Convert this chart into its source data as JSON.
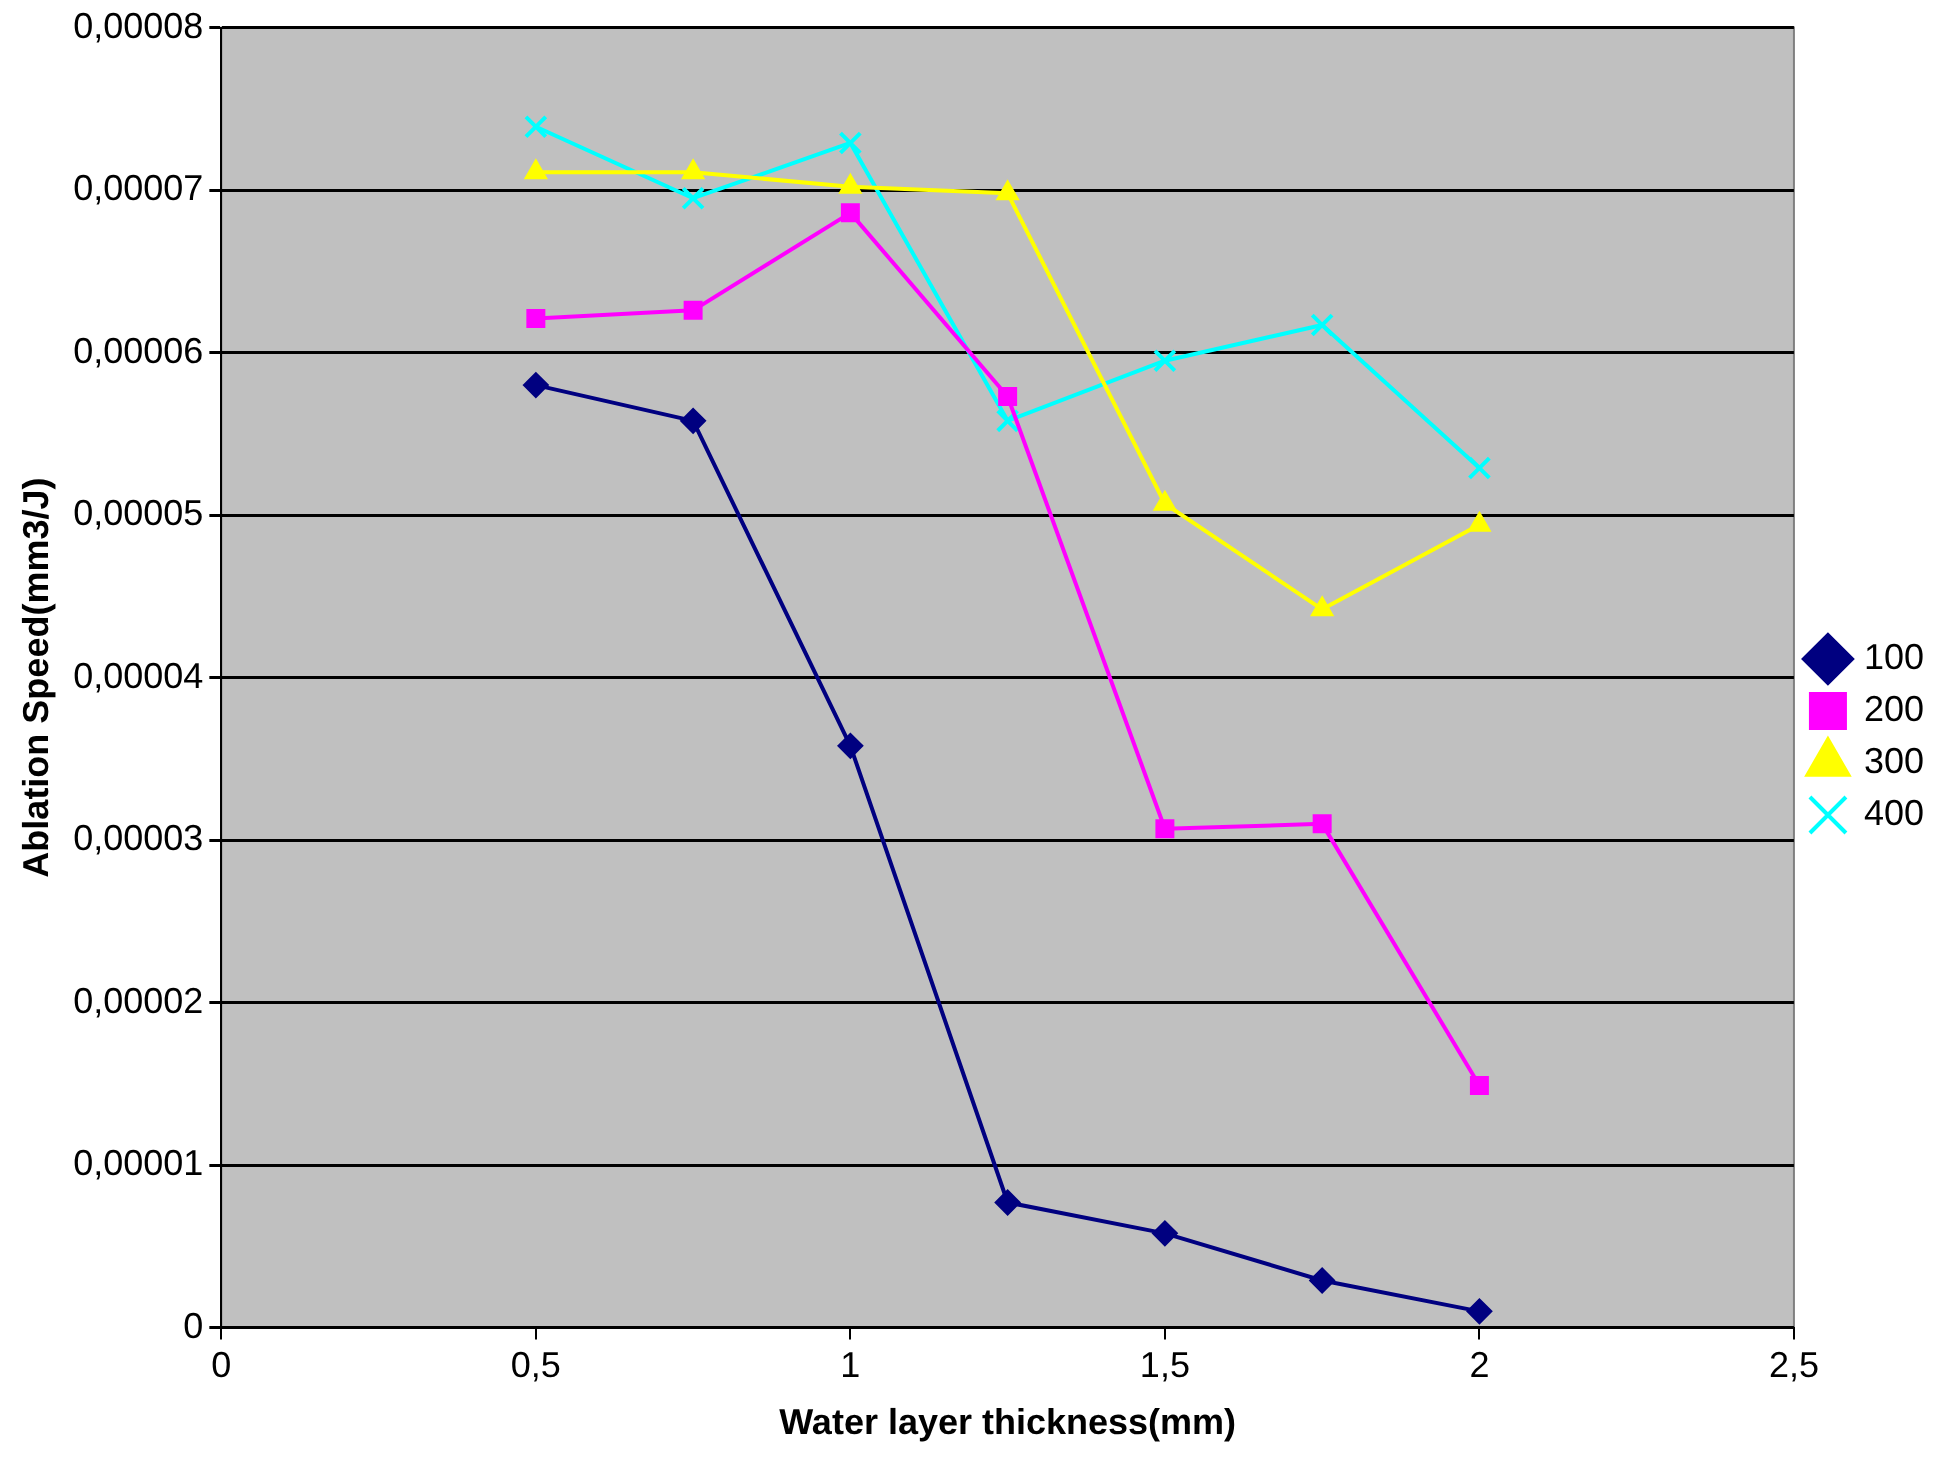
{
  "chart_data": {
    "type": "line",
    "xlabel": "Water layer thickness(mm)",
    "ylabel": "Ablation Speed(mm3/J)",
    "x": [
      0.5,
      0.75,
      1,
      1.25,
      1.5,
      1.75,
      2
    ],
    "series": [
      {
        "name": "100",
        "color": "#000080",
        "marker": "diamond",
        "values": [
          5.8e-05,
          5.58e-05,
          3.58e-05,
          7.7e-06,
          5.8e-06,
          2.9e-06,
          1e-06
        ]
      },
      {
        "name": "200",
        "color": "#ff00ff",
        "marker": "square",
        "values": [
          6.21e-05,
          6.26e-05,
          6.86e-05,
          5.73e-05,
          3.07e-05,
          3.1e-05,
          1.49e-05
        ]
      },
      {
        "name": "300",
        "color": "#ffff00",
        "marker": "triangle",
        "values": [
          7.11e-05,
          7.11e-05,
          7.02e-05,
          6.98e-05,
          5.07e-05,
          4.42e-05,
          4.94e-05
        ]
      },
      {
        "name": "400",
        "color": "#00ffff",
        "marker": "cross",
        "values": [
          7.39e-05,
          6.95e-05,
          7.29e-05,
          5.58e-05,
          5.95e-05,
          6.17e-05,
          5.29e-05
        ]
      }
    ],
    "xlim": [
      0,
      2.5
    ],
    "xticks": [
      0,
      {
        "value": 0.5,
        "label": "0,5"
      },
      1,
      {
        "value": 1.5,
        "label": "1,5"
      },
      2,
      {
        "value": 2.5,
        "label": "2,5"
      }
    ],
    "ylim": [
      0,
      8e-05
    ],
    "yticks": [
      0,
      {
        "value": 1e-05,
        "label": "0,00001"
      },
      {
        "value": 2e-05,
        "label": "0,00002"
      },
      {
        "value": 3e-05,
        "label": "0,00003"
      },
      {
        "value": 4e-05,
        "label": "0,00004"
      },
      {
        "value": 5e-05,
        "label": "0,00005"
      },
      {
        "value": 6e-05,
        "label": "0,00006"
      },
      {
        "value": 7e-05,
        "label": "0,00007"
      },
      {
        "value": 8e-05,
        "label": "0,00008"
      }
    ],
    "grid": "y",
    "legend": "right"
  }
}
